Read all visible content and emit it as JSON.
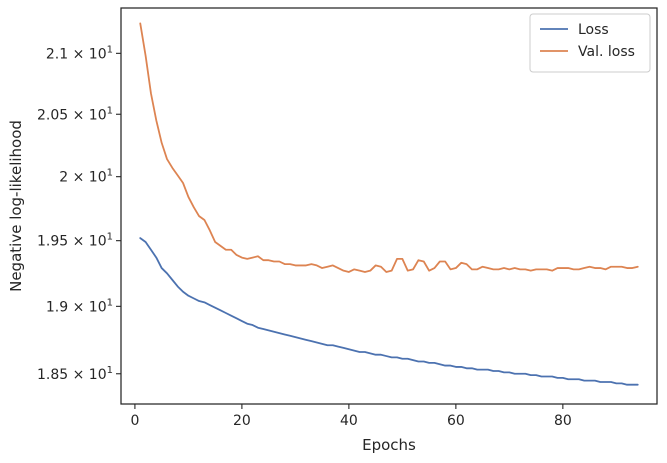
{
  "chart_data": {
    "type": "line",
    "title": "",
    "xlabel": "Epochs",
    "ylabel": "Negative log-likelihood",
    "yscale": "log",
    "xlim": [
      -2.6,
      97.6
    ],
    "ylim": [
      18.28,
      21.38
    ],
    "grid": false,
    "legend_position": "top-right",
    "x_ticks": [
      {
        "value": 0,
        "label": "0"
      },
      {
        "value": 20,
        "label": "20"
      },
      {
        "value": 40,
        "label": "40"
      },
      {
        "value": 60,
        "label": "60"
      },
      {
        "value": 80,
        "label": "80"
      }
    ],
    "y_ticks": [
      {
        "value": 18.5,
        "mantissa": "1.85",
        "times": "×",
        "base": "10",
        "exp": "1"
      },
      {
        "value": 19.0,
        "mantissa": "1.9",
        "times": "×",
        "base": "10",
        "exp": "1"
      },
      {
        "value": 19.5,
        "mantissa": "1.95",
        "times": "×",
        "base": "10",
        "exp": "1"
      },
      {
        "value": 20.0,
        "mantissa": "2",
        "times": "×",
        "base": "10",
        "exp": "1"
      },
      {
        "value": 20.5,
        "mantissa": "2.05",
        "times": "×",
        "base": "10",
        "exp": "1"
      },
      {
        "value": 21.0,
        "mantissa": "2.1",
        "times": "×",
        "base": "10",
        "exp": "1"
      }
    ],
    "series": [
      {
        "name": "Loss",
        "color": "#4c72b0",
        "x_start": 1,
        "values": [
          19.52,
          19.49,
          19.43,
          19.37,
          19.29,
          19.25,
          19.2,
          19.15,
          19.11,
          19.08,
          19.06,
          19.04,
          19.03,
          19.01,
          18.99,
          18.97,
          18.95,
          18.93,
          18.91,
          18.89,
          18.87,
          18.86,
          18.84,
          18.83,
          18.82,
          18.81,
          18.8,
          18.79,
          18.78,
          18.77,
          18.76,
          18.75,
          18.74,
          18.73,
          18.72,
          18.71,
          18.71,
          18.7,
          18.69,
          18.68,
          18.67,
          18.66,
          18.66,
          18.65,
          18.64,
          18.64,
          18.63,
          18.62,
          18.62,
          18.61,
          18.61,
          18.6,
          18.59,
          18.59,
          18.58,
          18.58,
          18.57,
          18.56,
          18.56,
          18.55,
          18.55,
          18.54,
          18.54,
          18.53,
          18.53,
          18.53,
          18.52,
          18.52,
          18.51,
          18.51,
          18.5,
          18.5,
          18.5,
          18.49,
          18.49,
          18.48,
          18.48,
          18.48,
          18.47,
          18.47,
          18.46,
          18.46,
          18.46,
          18.45,
          18.45,
          18.45,
          18.44,
          18.44,
          18.44,
          18.43,
          18.43,
          18.42,
          18.42,
          18.42
        ]
      },
      {
        "name": "Val. loss",
        "color": "#dd8452",
        "x_start": 1,
        "values": [
          21.25,
          20.98,
          20.67,
          20.45,
          20.27,
          20.14,
          20.07,
          20.01,
          19.95,
          19.84,
          19.76,
          19.69,
          19.66,
          19.58,
          19.49,
          19.46,
          19.43,
          19.43,
          19.39,
          19.37,
          19.36,
          19.37,
          19.38,
          19.35,
          19.35,
          19.34,
          19.34,
          19.32,
          19.32,
          19.31,
          19.31,
          19.31,
          19.32,
          19.31,
          19.29,
          19.3,
          19.31,
          19.29,
          19.27,
          19.26,
          19.28,
          19.27,
          19.26,
          19.27,
          19.31,
          19.3,
          19.26,
          19.27,
          19.36,
          19.36,
          19.27,
          19.28,
          19.35,
          19.34,
          19.27,
          19.29,
          19.34,
          19.34,
          19.28,
          19.29,
          19.33,
          19.32,
          19.28,
          19.28,
          19.3,
          19.29,
          19.28,
          19.28,
          19.29,
          19.28,
          19.29,
          19.28,
          19.28,
          19.27,
          19.28,
          19.28,
          19.28,
          19.27,
          19.29,
          19.29,
          19.29,
          19.28,
          19.28,
          19.29,
          19.3,
          19.29,
          19.29,
          19.28,
          19.3,
          19.3,
          19.3,
          19.29,
          19.29,
          19.3
        ]
      }
    ]
  }
}
